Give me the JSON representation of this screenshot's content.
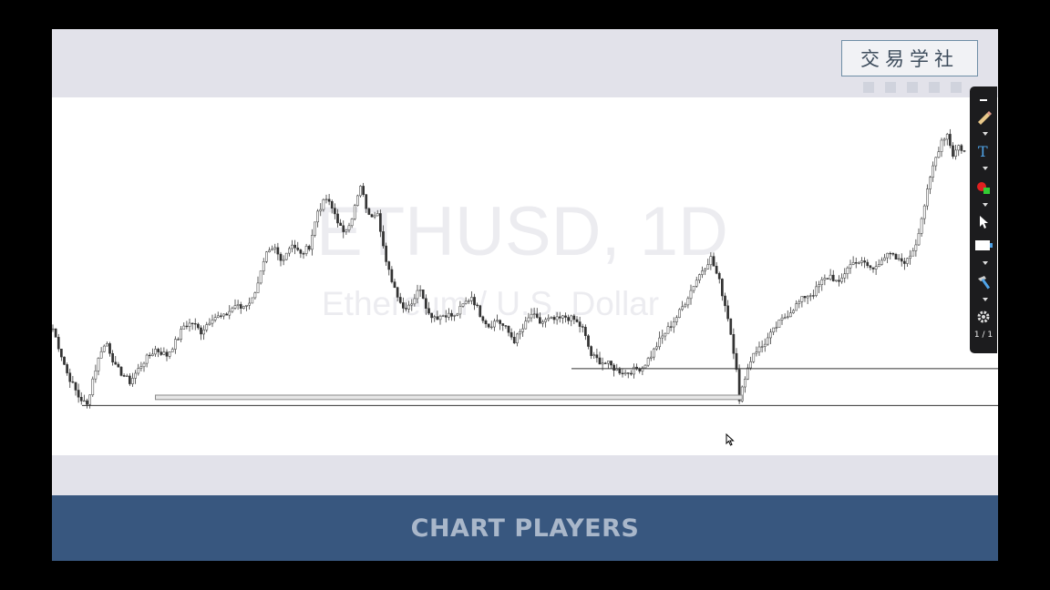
{
  "header": {
    "logo_text": "交易学社"
  },
  "footer": {
    "brand": "CHART PLAYERS"
  },
  "chart_data": {
    "type": "candlestick",
    "watermark_title": "ETHUSD, 1D",
    "watermark_subtitle": "Ethereum / U.S. Dollar",
    "ylim": [
      0,
      100
    ],
    "anchors": [
      [
        0,
        33
      ],
      [
        5,
        18
      ],
      [
        9,
        10
      ],
      [
        12,
        7
      ],
      [
        14,
        16
      ],
      [
        17,
        26
      ],
      [
        19,
        28
      ],
      [
        22,
        20
      ],
      [
        27,
        15
      ],
      [
        32,
        22
      ],
      [
        36,
        26
      ],
      [
        40,
        24
      ],
      [
        44,
        30
      ],
      [
        46,
        34
      ],
      [
        49,
        35
      ],
      [
        52,
        32
      ],
      [
        56,
        37
      ],
      [
        60,
        37
      ],
      [
        64,
        41
      ],
      [
        66,
        40
      ],
      [
        70,
        43
      ],
      [
        73,
        52
      ],
      [
        75,
        58
      ],
      [
        78,
        60
      ],
      [
        80,
        56
      ],
      [
        84,
        62
      ],
      [
        87,
        58
      ],
      [
        90,
        61
      ],
      [
        93,
        73
      ],
      [
        96,
        77
      ],
      [
        99,
        72
      ],
      [
        102,
        65
      ],
      [
        105,
        71
      ],
      [
        108,
        81
      ],
      [
        111,
        71
      ],
      [
        114,
        73
      ],
      [
        117,
        55
      ],
      [
        120,
        47
      ],
      [
        123,
        40
      ],
      [
        126,
        42
      ],
      [
        129,
        47
      ],
      [
        132,
        38
      ],
      [
        135,
        37
      ],
      [
        138,
        38
      ],
      [
        141,
        37
      ],
      [
        144,
        41
      ],
      [
        147,
        44
      ],
      [
        150,
        38
      ],
      [
        153,
        34
      ],
      [
        156,
        36
      ],
      [
        159,
        33
      ],
      [
        162,
        29
      ],
      [
        165,
        33
      ],
      [
        168,
        38
      ],
      [
        171,
        35
      ],
      [
        174,
        36
      ],
      [
        177,
        36
      ],
      [
        180,
        37
      ],
      [
        183,
        36
      ],
      [
        186,
        33
      ],
      [
        189,
        24
      ],
      [
        192,
        22
      ],
      [
        195,
        21
      ],
      [
        198,
        19
      ],
      [
        201,
        18
      ],
      [
        204,
        19
      ],
      [
        207,
        20
      ],
      [
        210,
        24
      ],
      [
        213,
        29
      ],
      [
        216,
        33
      ],
      [
        219,
        37
      ],
      [
        222,
        42
      ],
      [
        225,
        48
      ],
      [
        228,
        53
      ],
      [
        231,
        57
      ],
      [
        234,
        49
      ],
      [
        237,
        37
      ],
      [
        240,
        20
      ],
      [
        241,
        8
      ],
      [
        243,
        17
      ],
      [
        246,
        25
      ],
      [
        249,
        27
      ],
      [
        252,
        31
      ],
      [
        255,
        35
      ],
      [
        258,
        38
      ],
      [
        261,
        41
      ],
      [
        264,
        44
      ],
      [
        267,
        45
      ],
      [
        270,
        49
      ],
      [
        273,
        51
      ],
      [
        276,
        48
      ],
      [
        279,
        54
      ],
      [
        282,
        56
      ],
      [
        285,
        55
      ],
      [
        288,
        53
      ],
      [
        291,
        57
      ],
      [
        294,
        58
      ],
      [
        297,
        56
      ],
      [
        300,
        56
      ],
      [
        303,
        62
      ],
      [
        306,
        75
      ],
      [
        309,
        88
      ],
      [
        312,
        97
      ],
      [
        314,
        99
      ],
      [
        316,
        92
      ],
      [
        318,
        95
      ],
      [
        320,
        93
      ]
    ],
    "support_levels": [
      {
        "name": "lower-support",
        "value": 7
      },
      {
        "name": "middle-support",
        "value": 19.5
      }
    ],
    "support_zone": {
      "value_low": 9,
      "value_high": 10.5,
      "from_index": 36,
      "to_index": 242
    }
  }
}
